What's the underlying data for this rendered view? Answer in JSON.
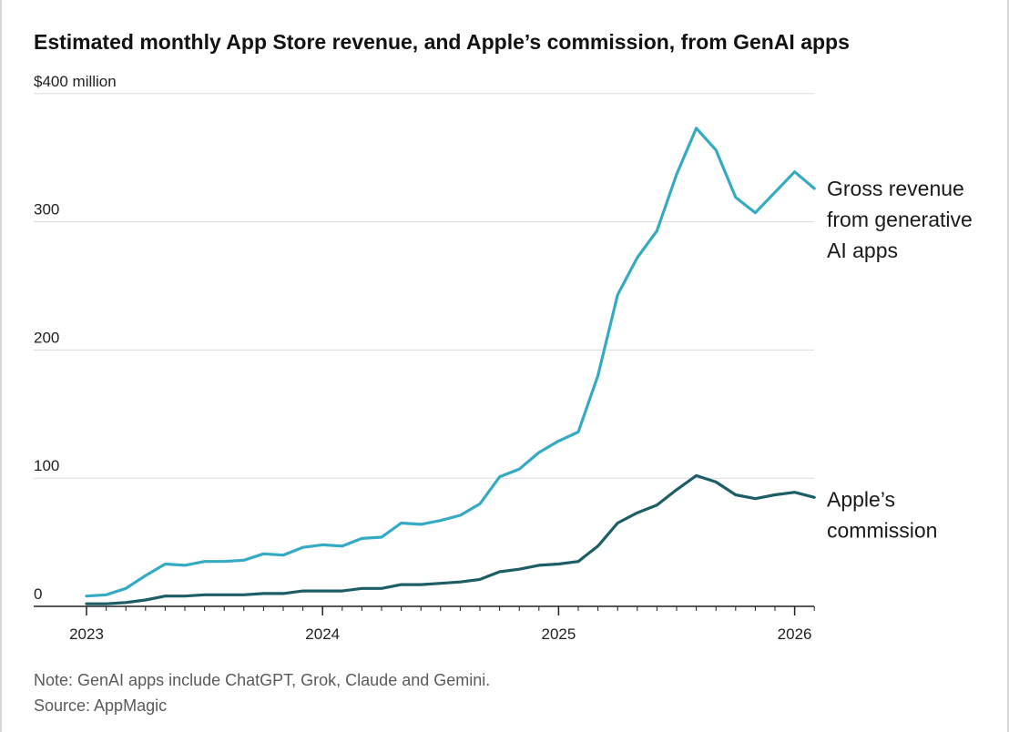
{
  "chart_data": {
    "type": "line",
    "title": "Estimated monthly App Store revenue, and Apple’s commission, from GenAI apps",
    "y_unit_label": "$400 million",
    "ylim": [
      0,
      400
    ],
    "y_ticks": [
      "0",
      "100",
      "200",
      "300"
    ],
    "x_ticks": [
      {
        "label": "2023",
        "value": "2023-01"
      },
      {
        "label": "2024",
        "value": "2024-01"
      },
      {
        "label": "2025",
        "value": "2025-01"
      },
      {
        "label": "2026",
        "value": "2026-01"
      }
    ],
    "x": [
      "2023-01",
      "2023-02",
      "2023-03",
      "2023-04",
      "2023-05",
      "2023-06",
      "2023-07",
      "2023-08",
      "2023-09",
      "2023-10",
      "2023-11",
      "2023-12",
      "2024-01",
      "2024-02",
      "2024-03",
      "2024-04",
      "2024-05",
      "2024-06",
      "2024-07",
      "2024-08",
      "2024-09",
      "2024-10",
      "2024-11",
      "2024-12",
      "2025-01",
      "2025-02",
      "2025-03",
      "2025-04",
      "2025-05",
      "2025-06",
      "2025-07",
      "2025-08",
      "2025-09",
      "2025-10",
      "2025-11",
      "2025-12",
      "2026-01",
      "2026-02"
    ],
    "grid": true,
    "series": [
      {
        "name": "Gross revenue from generative AI apps",
        "color": "#35aac5",
        "label_lines": [
          "Gross revenue",
          "from generative",
          "AI apps"
        ],
        "values": [
          8,
          9,
          14,
          24,
          33,
          32,
          35,
          35,
          36,
          41,
          40,
          46,
          48,
          47,
          53,
          54,
          65,
          64,
          67,
          71,
          80,
          101,
          107,
          120,
          129,
          136,
          180,
          243,
          272,
          293,
          337,
          373,
          356,
          319,
          307,
          323,
          339,
          326
        ]
      },
      {
        "name": "Apple’s commission",
        "color": "#1d5e66",
        "label_lines": [
          "Apple’s",
          "commission"
        ],
        "values": [
          2,
          2,
          3,
          5,
          8,
          8,
          9,
          9,
          9,
          10,
          10,
          12,
          12,
          12,
          14,
          14,
          17,
          17,
          18,
          19,
          21,
          27,
          29,
          32,
          33,
          35,
          47,
          65,
          73,
          79,
          91,
          102,
          97,
          87,
          84,
          87,
          89,
          85
        ]
      }
    ]
  },
  "note": "Note: GenAI apps include ChatGPT, Grok, Claude and Gemini.",
  "source": "Source: AppMagic"
}
